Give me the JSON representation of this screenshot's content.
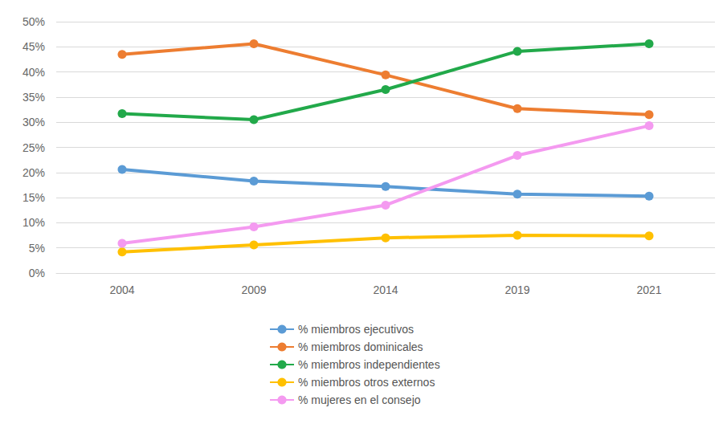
{
  "chart_data": {
    "type": "line",
    "categories": [
      "2004",
      "2009",
      "2014",
      "2019",
      "2021"
    ],
    "series": [
      {
        "name": "% miembros ejecutivos",
        "color": "#5b9bd5",
        "values": [
          20.6,
          18.3,
          17.2,
          15.7,
          15.3
        ]
      },
      {
        "name": "% miembros dominicales",
        "color": "#ed7d31",
        "values": [
          43.5,
          45.6,
          39.4,
          32.7,
          31.5
        ]
      },
      {
        "name": "% miembros independientes",
        "color": "#22a94a",
        "values": [
          31.7,
          30.5,
          36.5,
          44.1,
          45.6
        ]
      },
      {
        "name": "% miembros otros externos",
        "color": "#ffc000",
        "values": [
          4.2,
          5.6,
          7.0,
          7.5,
          7.4
        ]
      },
      {
        "name": "% mujeres en el consejo",
        "color": "#f49af0",
        "values": [
          5.9,
          9.2,
          13.5,
          23.4,
          29.3
        ]
      }
    ],
    "ylim": [
      0,
      50
    ],
    "yticks": [
      {
        "value": 0,
        "label": "0%"
      },
      {
        "value": 5,
        "label": "5%"
      },
      {
        "value": 10,
        "label": "10%"
      },
      {
        "value": 15,
        "label": "15%"
      },
      {
        "value": 20,
        "label": "20%"
      },
      {
        "value": 25,
        "label": "25%"
      },
      {
        "value": 30,
        "label": "30%"
      },
      {
        "value": 35,
        "label": "35%"
      },
      {
        "value": 40,
        "label": "40%"
      },
      {
        "value": 45,
        "label": "45%"
      },
      {
        "value": 50,
        "label": "50%"
      }
    ],
    "grid": true,
    "legend": "bottom",
    "marker": "circle",
    "line_style": "solid"
  }
}
